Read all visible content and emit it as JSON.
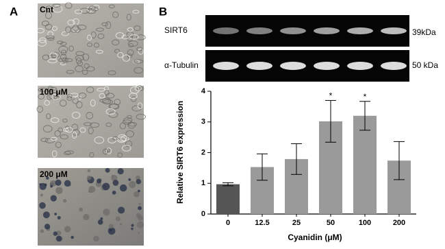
{
  "panel_a": {
    "label": "A",
    "images": [
      {
        "label": "Cnt"
      },
      {
        "label": "100 μM"
      },
      {
        "label": "200 μM"
      }
    ]
  },
  "panel_b": {
    "label": "B",
    "blots": [
      {
        "label": "SIRT6",
        "size": "39kDa"
      },
      {
        "label": "α-Tubulin",
        "size": "50 kDa"
      }
    ]
  },
  "chart_data": {
    "type": "bar",
    "x_label": "Cyanidin (μM)",
    "y_label": "Relative SIRT6 expression",
    "categories": [
      "0",
      "12.5",
      "25",
      "50",
      "100",
      "200"
    ],
    "values": [
      0.97,
      1.53,
      1.79,
      3.02,
      3.2,
      1.74
    ],
    "errors": [
      0.05,
      0.43,
      0.5,
      0.68,
      0.47,
      0.62
    ],
    "significance": [
      null,
      null,
      null,
      "*",
      "*",
      null
    ],
    "colors": [
      "#555555",
      "#9a9a9a",
      "#9a9a9a",
      "#9a9a9a",
      "#9a9a9a",
      "#9a9a9a"
    ],
    "ylim": [
      0,
      4
    ],
    "yticks": [
      0,
      1,
      2,
      3,
      4
    ]
  }
}
